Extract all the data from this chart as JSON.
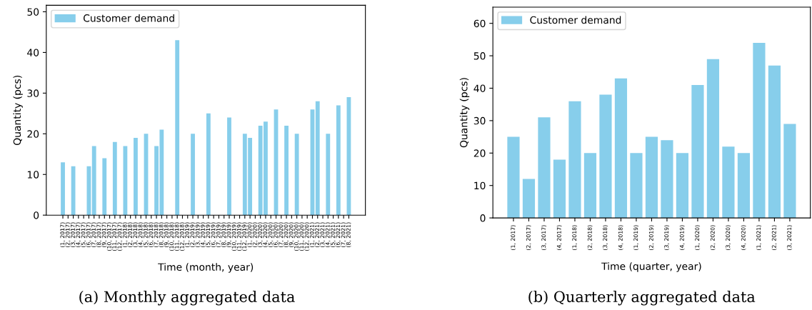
{
  "chart_data": [
    {
      "type": "bar",
      "title": "(a) Monthly aggregated data",
      "xlabel": "Time (month, year)",
      "ylabel": "Quantity (pcs)",
      "categories": [
        "(1, 2017)",
        "(2, 2017)",
        "(3, 2017)",
        "(4, 2017)",
        "(5, 2017)",
        "(6, 2017)",
        "(7, 2017)",
        "(8, 2017)",
        "(9, 2017)",
        "(10, 2017)",
        "(11, 2017)",
        "(12, 2017)",
        "(1, 2018)",
        "(2, 2018)",
        "(3, 2018)",
        "(4, 2018)",
        "(5, 2018)",
        "(6, 2018)",
        "(7, 2018)",
        "(8, 2018)",
        "(9, 2018)",
        "(10, 2018)",
        "(11, 2018)",
        "(12, 2018)",
        "(1, 2019)",
        "(2, 2019)",
        "(3, 2019)",
        "(4, 2019)",
        "(5, 2019)",
        "(6, 2019)",
        "(7, 2019)",
        "(8, 2019)",
        "(9, 2019)",
        "(10, 2019)",
        "(11, 2019)",
        "(12, 2019)",
        "(1, 2020)",
        "(2, 2020)",
        "(3, 2020)",
        "(4, 2020)",
        "(5, 2020)",
        "(6, 2020)",
        "(7, 2020)",
        "(8, 2020)",
        "(9, 2020)",
        "(10, 2020)",
        "(11, 2020)",
        "(12, 2020)",
        "(1, 2021)",
        "(2, 2021)",
        "(3, 2021)",
        "(4, 2021)",
        "(5, 2021)",
        "(6, 2021)",
        "(7, 2021)",
        "(8, 2021)"
      ],
      "series": [
        {
          "name": "Customer demand",
          "color": "#87ceeb",
          "values": [
            13,
            0,
            12,
            0,
            0,
            12,
            17,
            0,
            14,
            0,
            18,
            0,
            17,
            0,
            19,
            0,
            20,
            0,
            17,
            21,
            0,
            0,
            43,
            0,
            0,
            20,
            0,
            0,
            25,
            0,
            0,
            0,
            24,
            0,
            0,
            20,
            19,
            0,
            22,
            23,
            0,
            26,
            0,
            22,
            0,
            20,
            0,
            0,
            26,
            28,
            0,
            20,
            0,
            27,
            0,
            29
          ]
        }
      ],
      "ylim": [
        0,
        51.6
      ],
      "yticks": [
        0,
        10,
        20,
        30,
        40,
        50
      ],
      "legend": "top left",
      "grid": false
    },
    {
      "type": "bar",
      "title": "(b) Quarterly aggregated data",
      "xlabel": "Time (quarter, year)",
      "ylabel": "Quantity (pcs)",
      "categories": [
        "(1, 2017)",
        "(2, 2017)",
        "(3, 2017)",
        "(4, 2017)",
        "(1, 2018)",
        "(2, 2018)",
        "(3, 2018)",
        "(4, 2018)",
        "(1, 2019)",
        "(2, 2019)",
        "(3, 2019)",
        "(4, 2019)",
        "(1, 2020)",
        "(2, 2020)",
        "(3, 2020)",
        "(4, 2020)",
        "(1, 2021)",
        "(2, 2021)",
        "(3, 2021)"
      ],
      "series": [
        {
          "name": "Customer demand",
          "color": "#87ceeb",
          "values": [
            25,
            12,
            31,
            18,
            36,
            20,
            38,
            43,
            20,
            25,
            24,
            20,
            41,
            49,
            22,
            20,
            54,
            47,
            29
          ]
        }
      ],
      "ylim": [
        0,
        65
      ],
      "yticks": [
        0,
        10,
        20,
        30,
        40,
        50,
        60
      ],
      "legend": "top left",
      "grid": false
    }
  ]
}
